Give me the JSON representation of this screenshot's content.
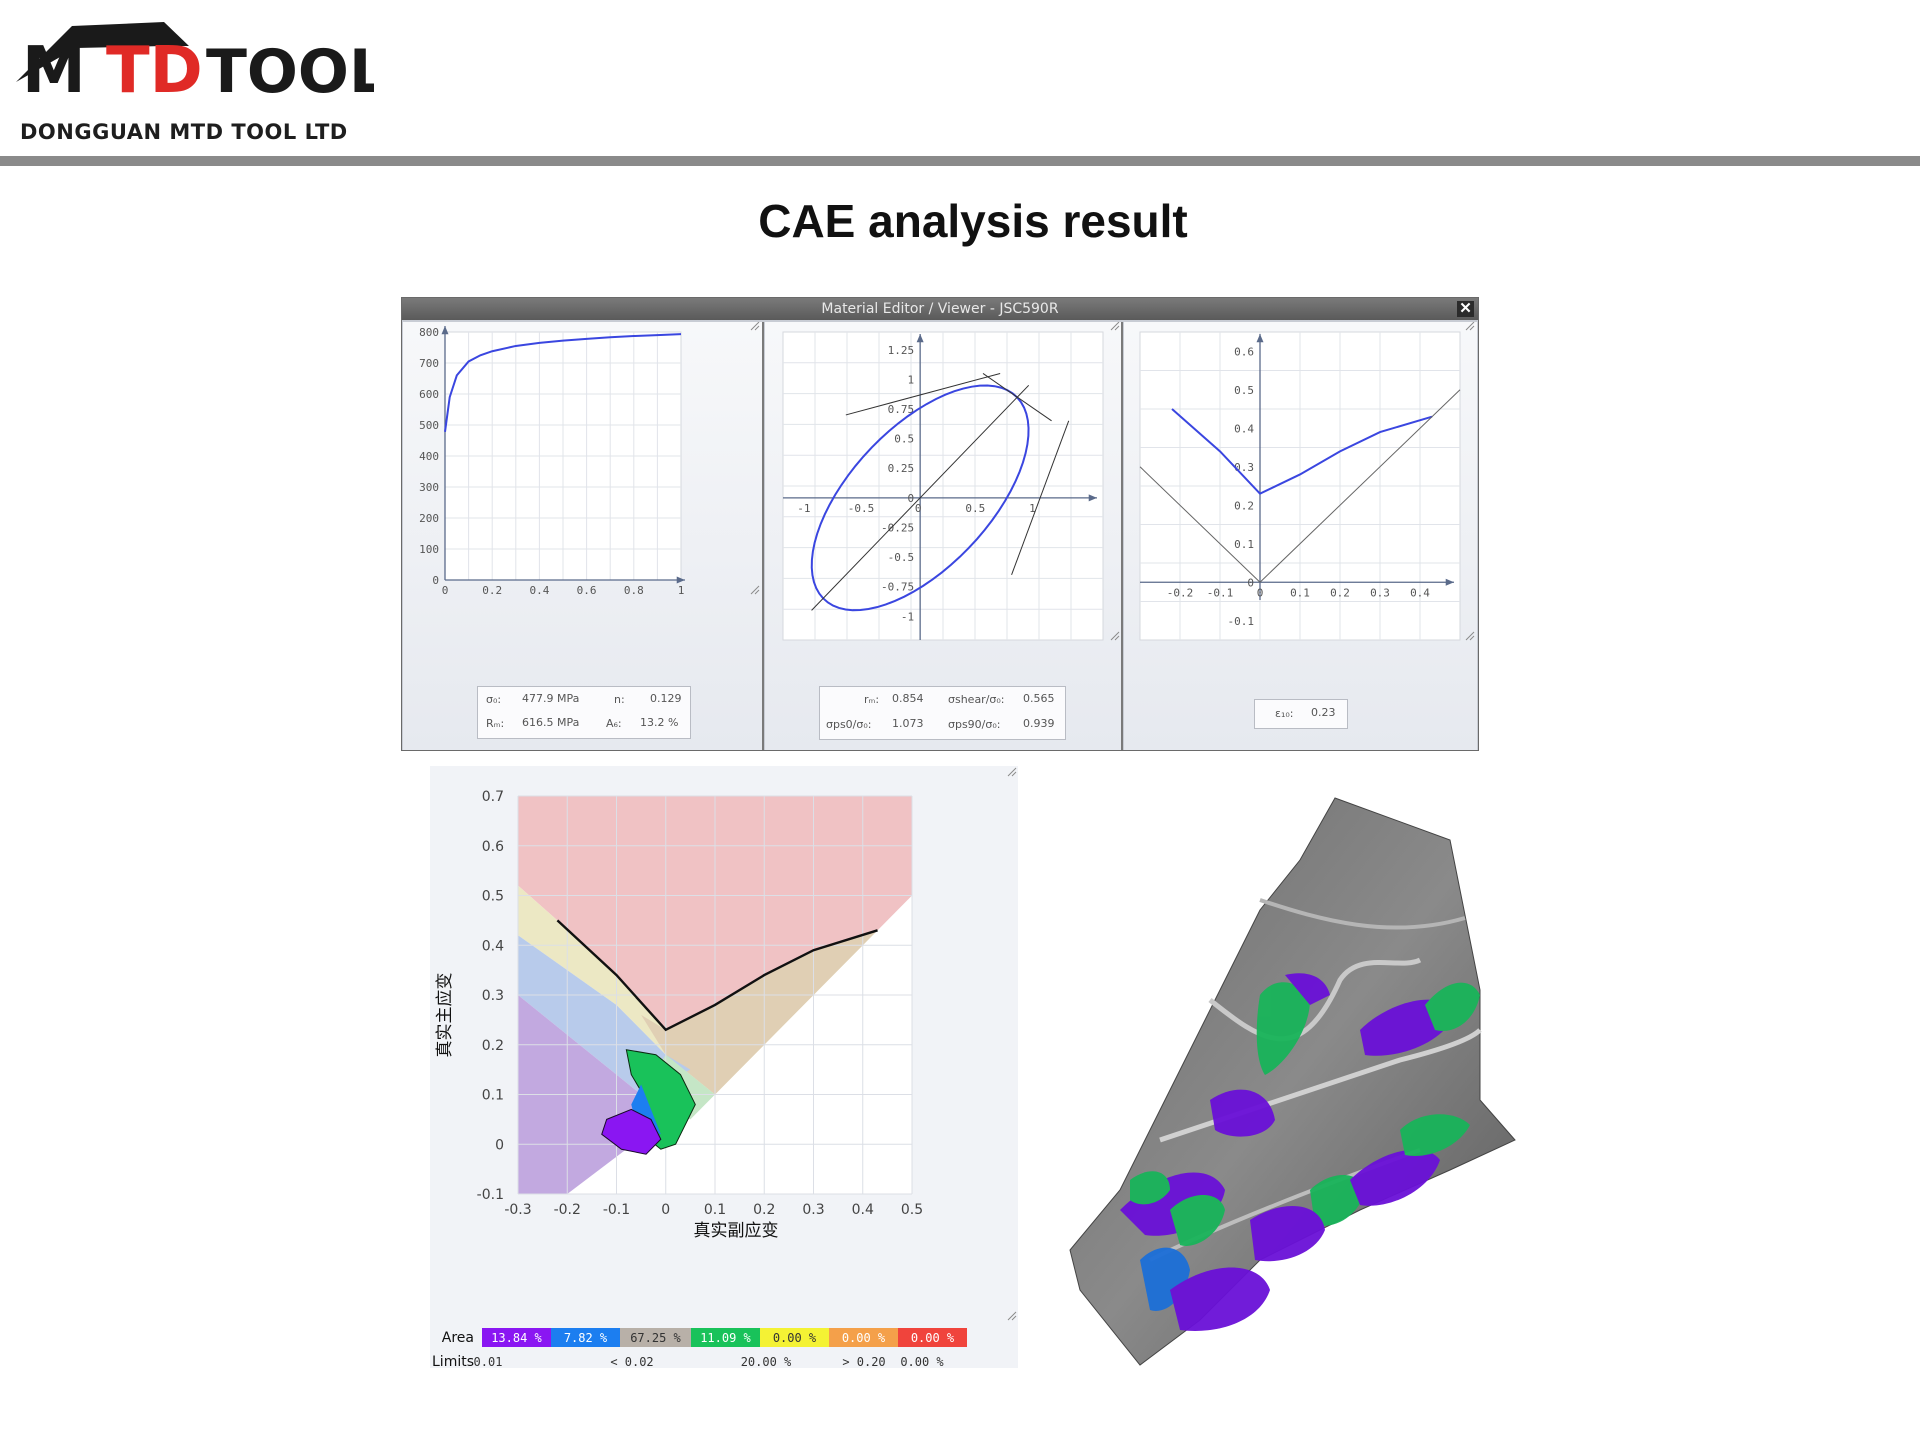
{
  "logo": {
    "brand_black": "M",
    "brand_red": "TD",
    "brand_tool": "TOOL",
    "company": "DONGGUAN MTD TOOL LTD",
    "colors": {
      "black": "#1a1a1a",
      "red": "#e02a26"
    }
  },
  "slide": {
    "title": "CAE analysis result"
  },
  "window": {
    "title": "Material Editor / Viewer - JSC590R",
    "close_label": "✕",
    "stress_strain": {
      "y_ticks": [
        "800",
        "700",
        "600",
        "500",
        "400",
        "300",
        "200",
        "100",
        "0"
      ],
      "x_ticks": [
        "0",
        "0.2",
        "0.4",
        "0.6",
        "0.8",
        "1"
      ],
      "info": {
        "sigma0_label": "σ₀:",
        "sigma0_value": "477.9 MPa",
        "n_label": "n:",
        "n_value": "0.129",
        "rm_label": "Rₘ:",
        "rm_value": "616.5 MPa",
        "ag_label": "A₆:",
        "ag_value": "13.2 %"
      }
    },
    "yield_locus": {
      "y_ticks": [
        "1.25",
        "1",
        "0.75",
        "0.5",
        "0.25",
        "0",
        "-0.25",
        "-0.5",
        "-0.75",
        "-1"
      ],
      "x_ticks": [
        "-1",
        "-0.5",
        "0",
        "0.5",
        "1"
      ],
      "info": {
        "rm_label": "rₘ:",
        "rm_value": "0.854",
        "shear_label": "σshear/σ₀:",
        "shear_value": "0.565",
        "ps0_label": "σps0/σ₀:",
        "ps0_value": "1.073",
        "ps90_label": "σps90/σ₀:",
        "ps90_value": "0.939"
      }
    },
    "flc": {
      "y_ticks": [
        "0.6",
        "0.5",
        "0.4",
        "0.3",
        "0.2",
        "0.1",
        "0",
        "-0.1"
      ],
      "x_ticks": [
        "-0.2",
        "-0.1",
        "0",
        "0.1",
        "0.2",
        "0.3",
        "0.4"
      ],
      "info": {
        "eps_label": "ε₁₀:",
        "eps_value": "0.23"
      }
    }
  },
  "fld": {
    "ylabel": "真实主应变",
    "xlabel": "真实副应变",
    "y_ticks": [
      "0.7",
      "0.6",
      "0.5",
      "0.4",
      "0.3",
      "0.2",
      "0.1",
      "0",
      "-0.1"
    ],
    "x_ticks": [
      "-0.3",
      "-0.2",
      "-0.1",
      "0",
      "0.1",
      "0.2",
      "0.3",
      "0.4",
      "0.5"
    ],
    "legend": {
      "area_label": "Area",
      "limits_label": "Limits",
      "areas": [
        "13.84 %",
        "7.82 %",
        "67.25 %",
        "11.09 %",
        "0.00 %",
        "0.00 %",
        "0.00 %"
      ],
      "area_colors": [
        "#8a16f2",
        "#1c7ef0",
        "#b8b0a8",
        "#19c25a",
        "#f4f234",
        "#f4a04a",
        "#f0443c"
      ],
      "limits": [
        "0.01",
        "< 0.02",
        "20.00 %",
        "> 0.20",
        "0.00 %"
      ]
    }
  },
  "chart_data": [
    {
      "type": "line",
      "x": [
        0,
        0.02,
        0.05,
        0.1,
        0.15,
        0.2,
        0.3,
        0.4,
        0.5,
        0.6,
        0.7,
        0.8,
        0.9,
        1.0
      ],
      "y": [
        478,
        590,
        660,
        705,
        725,
        738,
        755,
        765,
        772,
        778,
        783,
        787,
        790,
        793
      ],
      "xlim": [
        0,
        1
      ],
      "ylim": [
        0,
        800
      ]
    },
    {
      "type": "line",
      "xlim": [
        -1,
        1.25
      ],
      "ylim": [
        -1,
        1.25
      ]
    },
    {
      "type": "line",
      "x": [
        -0.22,
        -0.1,
        0.0,
        0.1,
        0.2,
        0.3,
        0.43
      ],
      "y": [
        0.45,
        0.34,
        0.23,
        0.28,
        0.34,
        0.39,
        0.43
      ],
      "xlim": [
        -0.3,
        0.5
      ],
      "ylim": [
        -0.15,
        0.65
      ]
    },
    {
      "type": "line",
      "x": [
        -0.22,
        -0.1,
        0.0,
        0.1,
        0.2,
        0.3,
        0.43
      ],
      "y": [
        0.45,
        0.34,
        0.23,
        0.28,
        0.34,
        0.39,
        0.43
      ],
      "xlim": [
        -0.3,
        0.5
      ],
      "ylim": [
        -0.1,
        0.7
      ]
    }
  ]
}
